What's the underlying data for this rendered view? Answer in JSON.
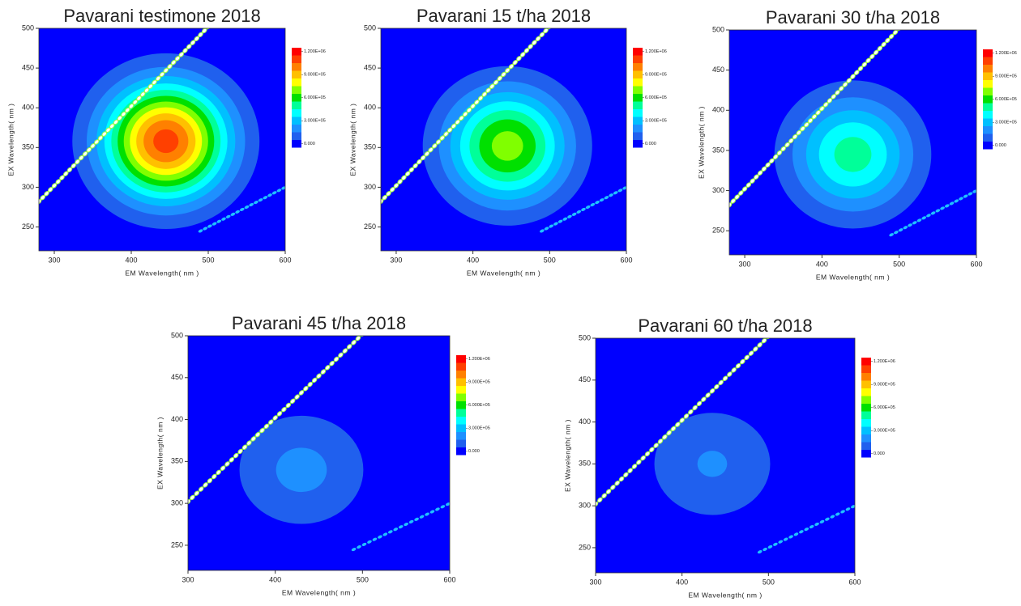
{
  "chart_data": [
    {
      "type": "contour",
      "title": "Pavarani testimone 2018",
      "x_label": "EM Wavelength( nm )",
      "y_label": "EX Wavelength( nm )",
      "xlim": [
        280,
        600
      ],
      "ylim": [
        220,
        500
      ],
      "xticks": [
        300,
        400,
        500,
        600
      ],
      "yticks": [
        250,
        300,
        350,
        400,
        450,
        500
      ],
      "peak": {
        "em": 445,
        "ex": 358,
        "value": 1150000
      },
      "colorbar": {
        "levels": [
          0,
          100000,
          200000,
          300000,
          400000,
          500000,
          600000,
          700000,
          800000,
          900000,
          1000000,
          1100000,
          1200000
        ],
        "colors": [
          "#0000ff",
          "#2060ee",
          "#1e90ff",
          "#00c0ff",
          "#00ffff",
          "#00ff99",
          "#00e000",
          "#80ff00",
          "#ffff00",
          "#ffc000",
          "#ff8000",
          "#ff4000",
          "#ff0000"
        ],
        "ticks": [
          {
            "value": 1200000,
            "label": "1.200E+06"
          },
          {
            "value": 900000,
            "label": "9.000E+05"
          },
          {
            "value": 600000,
            "label": "6.000E+05"
          },
          {
            "value": 300000,
            "label": "3.000E+05"
          },
          {
            "value": 0,
            "label": "0.000"
          }
        ]
      }
    },
    {
      "type": "contour",
      "title": "Pavarani 15 t/ha 2018",
      "x_label": "EM Wavelength( nm )",
      "y_label": "EX Wavelength( nm )",
      "xlim": [
        280,
        600
      ],
      "ylim": [
        220,
        500
      ],
      "xticks": [
        300,
        400,
        500,
        600
      ],
      "yticks": [
        250,
        300,
        350,
        400,
        450,
        500
      ],
      "peak": {
        "em": 445,
        "ex": 352,
        "value": 750000
      },
      "colorbar": {
        "levels": [
          0,
          100000,
          200000,
          300000,
          400000,
          500000,
          600000,
          700000,
          800000,
          900000,
          1000000,
          1100000,
          1200000
        ],
        "colors": [
          "#0000ff",
          "#2060ee",
          "#1e90ff",
          "#00c0ff",
          "#00ffff",
          "#00ff99",
          "#00e000",
          "#80ff00",
          "#ffff00",
          "#ffc000",
          "#ff8000",
          "#ff4000",
          "#ff0000"
        ],
        "ticks": [
          {
            "value": 1200000,
            "label": "1.200E+06"
          },
          {
            "value": 900000,
            "label": "9.000E+05"
          },
          {
            "value": 600000,
            "label": "6.000E+05"
          },
          {
            "value": 300000,
            "label": "3.000E+05"
          },
          {
            "value": 0,
            "label": "0.000"
          }
        ]
      }
    },
    {
      "type": "contour",
      "title": "Pavarani 30 t/ha 2018",
      "x_label": "EM Wavelength( nm )",
      "y_label": "EX Wavelength( nm )",
      "xlim": [
        280,
        600
      ],
      "ylim": [
        220,
        500
      ],
      "xticks": [
        300,
        400,
        500,
        600
      ],
      "yticks": [
        250,
        300,
        350,
        400,
        450,
        500
      ],
      "peak": {
        "em": 440,
        "ex": 345,
        "value": 550000
      },
      "colorbar": {
        "levels": [
          0,
          100000,
          200000,
          300000,
          400000,
          500000,
          600000,
          700000,
          800000,
          900000,
          1000000,
          1100000,
          1200000
        ],
        "colors": [
          "#0000ff",
          "#2060ee",
          "#1e90ff",
          "#00c0ff",
          "#00ffff",
          "#00ff99",
          "#00e000",
          "#80ff00",
          "#ffff00",
          "#ffc000",
          "#ff8000",
          "#ff4000",
          "#ff0000"
        ],
        "ticks": [
          {
            "value": 1200000,
            "label": "1.200E+06"
          },
          {
            "value": 900000,
            "label": "9.000E+05"
          },
          {
            "value": 600000,
            "label": "6.000E+05"
          },
          {
            "value": 300000,
            "label": "3.000E+05"
          },
          {
            "value": 0,
            "label": "0.000"
          }
        ]
      }
    },
    {
      "type": "contour",
      "title": "Pavarani 45 t/ha 2018",
      "x_label": "EM Wavelength( nm )",
      "y_label": "EX Wavelength( nm )",
      "xlim": [
        300,
        600
      ],
      "ylim": [
        220,
        500
      ],
      "xticks": [
        300,
        400,
        500,
        600
      ],
      "yticks": [
        250,
        300,
        350,
        400,
        450,
        500
      ],
      "peak": {
        "em": 430,
        "ex": 340,
        "value": 230000
      },
      "colorbar": {
        "levels": [
          0,
          100000,
          200000,
          300000,
          400000,
          500000,
          600000,
          700000,
          800000,
          900000,
          1000000,
          1100000,
          1200000
        ],
        "colors": [
          "#0000ff",
          "#2060ee",
          "#1e90ff",
          "#00c0ff",
          "#00ffff",
          "#00ff99",
          "#00e000",
          "#80ff00",
          "#ffff00",
          "#ffc000",
          "#ff8000",
          "#ff4000",
          "#ff0000"
        ],
        "ticks": [
          {
            "value": 1200000,
            "label": "1.200E+06"
          },
          {
            "value": 900000,
            "label": "9.000E+05"
          },
          {
            "value": 600000,
            "label": "6.000E+05"
          },
          {
            "value": 300000,
            "label": "3.000E+05"
          },
          {
            "value": 0,
            "label": "0.000"
          }
        ]
      }
    },
    {
      "type": "contour",
      "title": "Pavarani 60 t/ha 2018",
      "x_label": "EM Wavelength( nm )",
      "y_label": "EX Wavelength( nm )",
      "xlim": [
        300,
        600
      ],
      "ylim": [
        220,
        500
      ],
      "xticks": [
        300,
        400,
        500,
        600
      ],
      "yticks": [
        250,
        300,
        350,
        400,
        450,
        500
      ],
      "peak": {
        "em": 435,
        "ex": 350,
        "value": 210000
      },
      "colorbar": {
        "levels": [
          0,
          100000,
          200000,
          300000,
          400000,
          500000,
          600000,
          700000,
          800000,
          900000,
          1000000,
          1100000,
          1200000
        ],
        "colors": [
          "#0000ff",
          "#2060ee",
          "#1e90ff",
          "#00c0ff",
          "#00ffff",
          "#00ff99",
          "#00e000",
          "#80ff00",
          "#ffff00",
          "#ffc000",
          "#ff8000",
          "#ff4000",
          "#ff0000"
        ],
        "ticks": [
          {
            "value": 1200000,
            "label": "1.200E+06"
          },
          {
            "value": 900000,
            "label": "9.000E+05"
          },
          {
            "value": 600000,
            "label": "6.000E+05"
          },
          {
            "value": 300000,
            "label": "3.000E+05"
          },
          {
            "value": 0,
            "label": "0.000"
          }
        ]
      }
    }
  ]
}
